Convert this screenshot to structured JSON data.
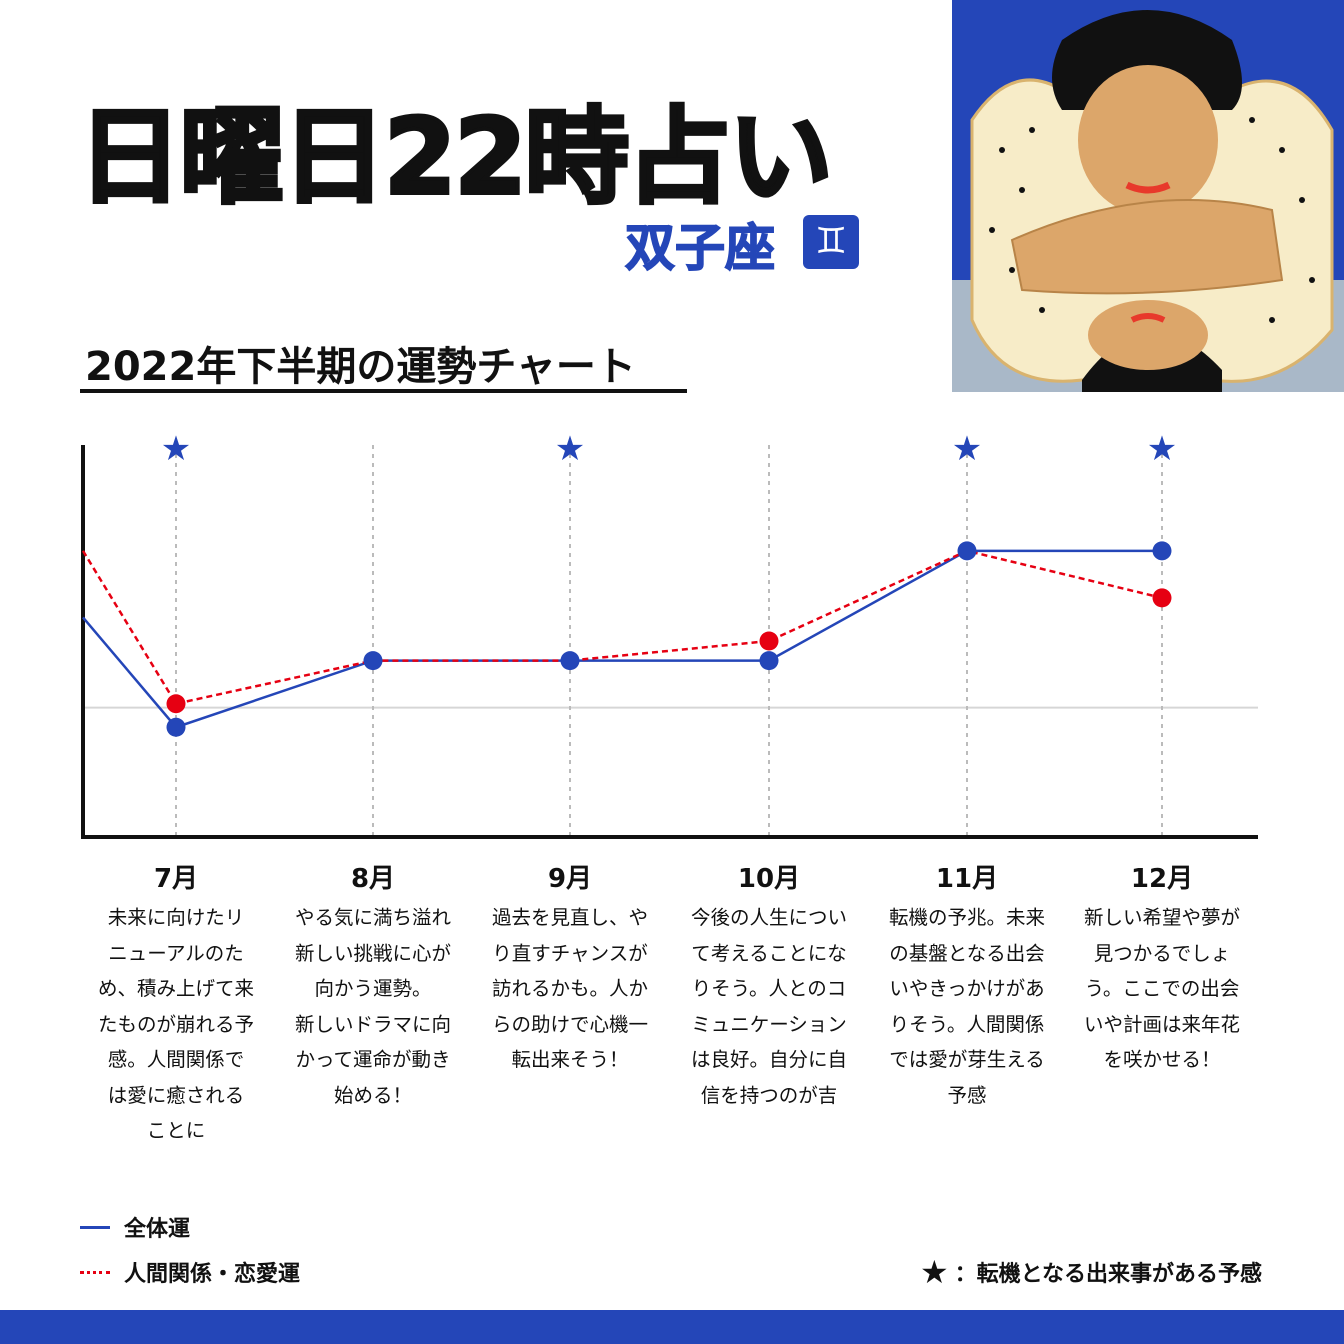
{
  "header": {
    "title": "日曜日22時占い",
    "sign": "双子座",
    "sign_symbol": "♊"
  },
  "section_title": "2022年下半期の運勢チャート",
  "colors": {
    "blue": "#2446b8",
    "red": "#e60012",
    "accent": "#2446b8"
  },
  "chart_data": {
    "type": "line",
    "title": "",
    "categories": [
      "7月",
      "8月",
      "9月",
      "10月",
      "11月",
      "12月"
    ],
    "ylim": [
      0,
      10
    ],
    "y_ticks_shown": false,
    "reference_line": 3.3,
    "grid": "vertical dashed per month",
    "series": [
      {
        "name": "全体運",
        "color": "#2446b8",
        "style": "solid",
        "start_value": 5.6,
        "values": [
          2.8,
          4.5,
          4.5,
          4.5,
          7.3,
          7.3
        ]
      },
      {
        "name": "人間関係・恋愛運",
        "color": "#e60012",
        "style": "dashed",
        "start_value": 7.3,
        "values": [
          3.4,
          4.5,
          4.5,
          5.0,
          7.3,
          6.1
        ]
      }
    ],
    "star_months": [
      "7月",
      "9月",
      "11月",
      "12月"
    ],
    "descriptions": [
      "未来に向けたリ\nニューアルのた\nめ、積み上げて来\nたものが崩れる予\n感。人間関係で\nは愛に癒される\nことに",
      "やる気に満ち溢れ\n新しい挑戦に心が\n向かう運勢。\n新しいドラマに向\nかって運命が動き\n始める！",
      "過去を見直し、や\nり直すチャンスが\n訪れるかも。人か\nらの助けで心機一\n転出来そう！",
      "今後の人生につい\nて考えることにな\nりそう。人とのコ\nミュニケーション\nは良好。自分に自\n信を持つのが吉",
      "転機の予兆。未来\nの基盤となる出会\nいやきっかけがあ\nりそう。人間関係\nでは愛が芽生える\n予感",
      "新しい希望や夢が\n見つかるでしょ\nう。ここでの出会\nいや計画は来年花\nを咲かせる！"
    ],
    "legend": {
      "position": "bottom-left",
      "items": [
        "全体運",
        "人間関係・恋愛運"
      ]
    },
    "star_note": "：転機となる出来事がある予感"
  }
}
